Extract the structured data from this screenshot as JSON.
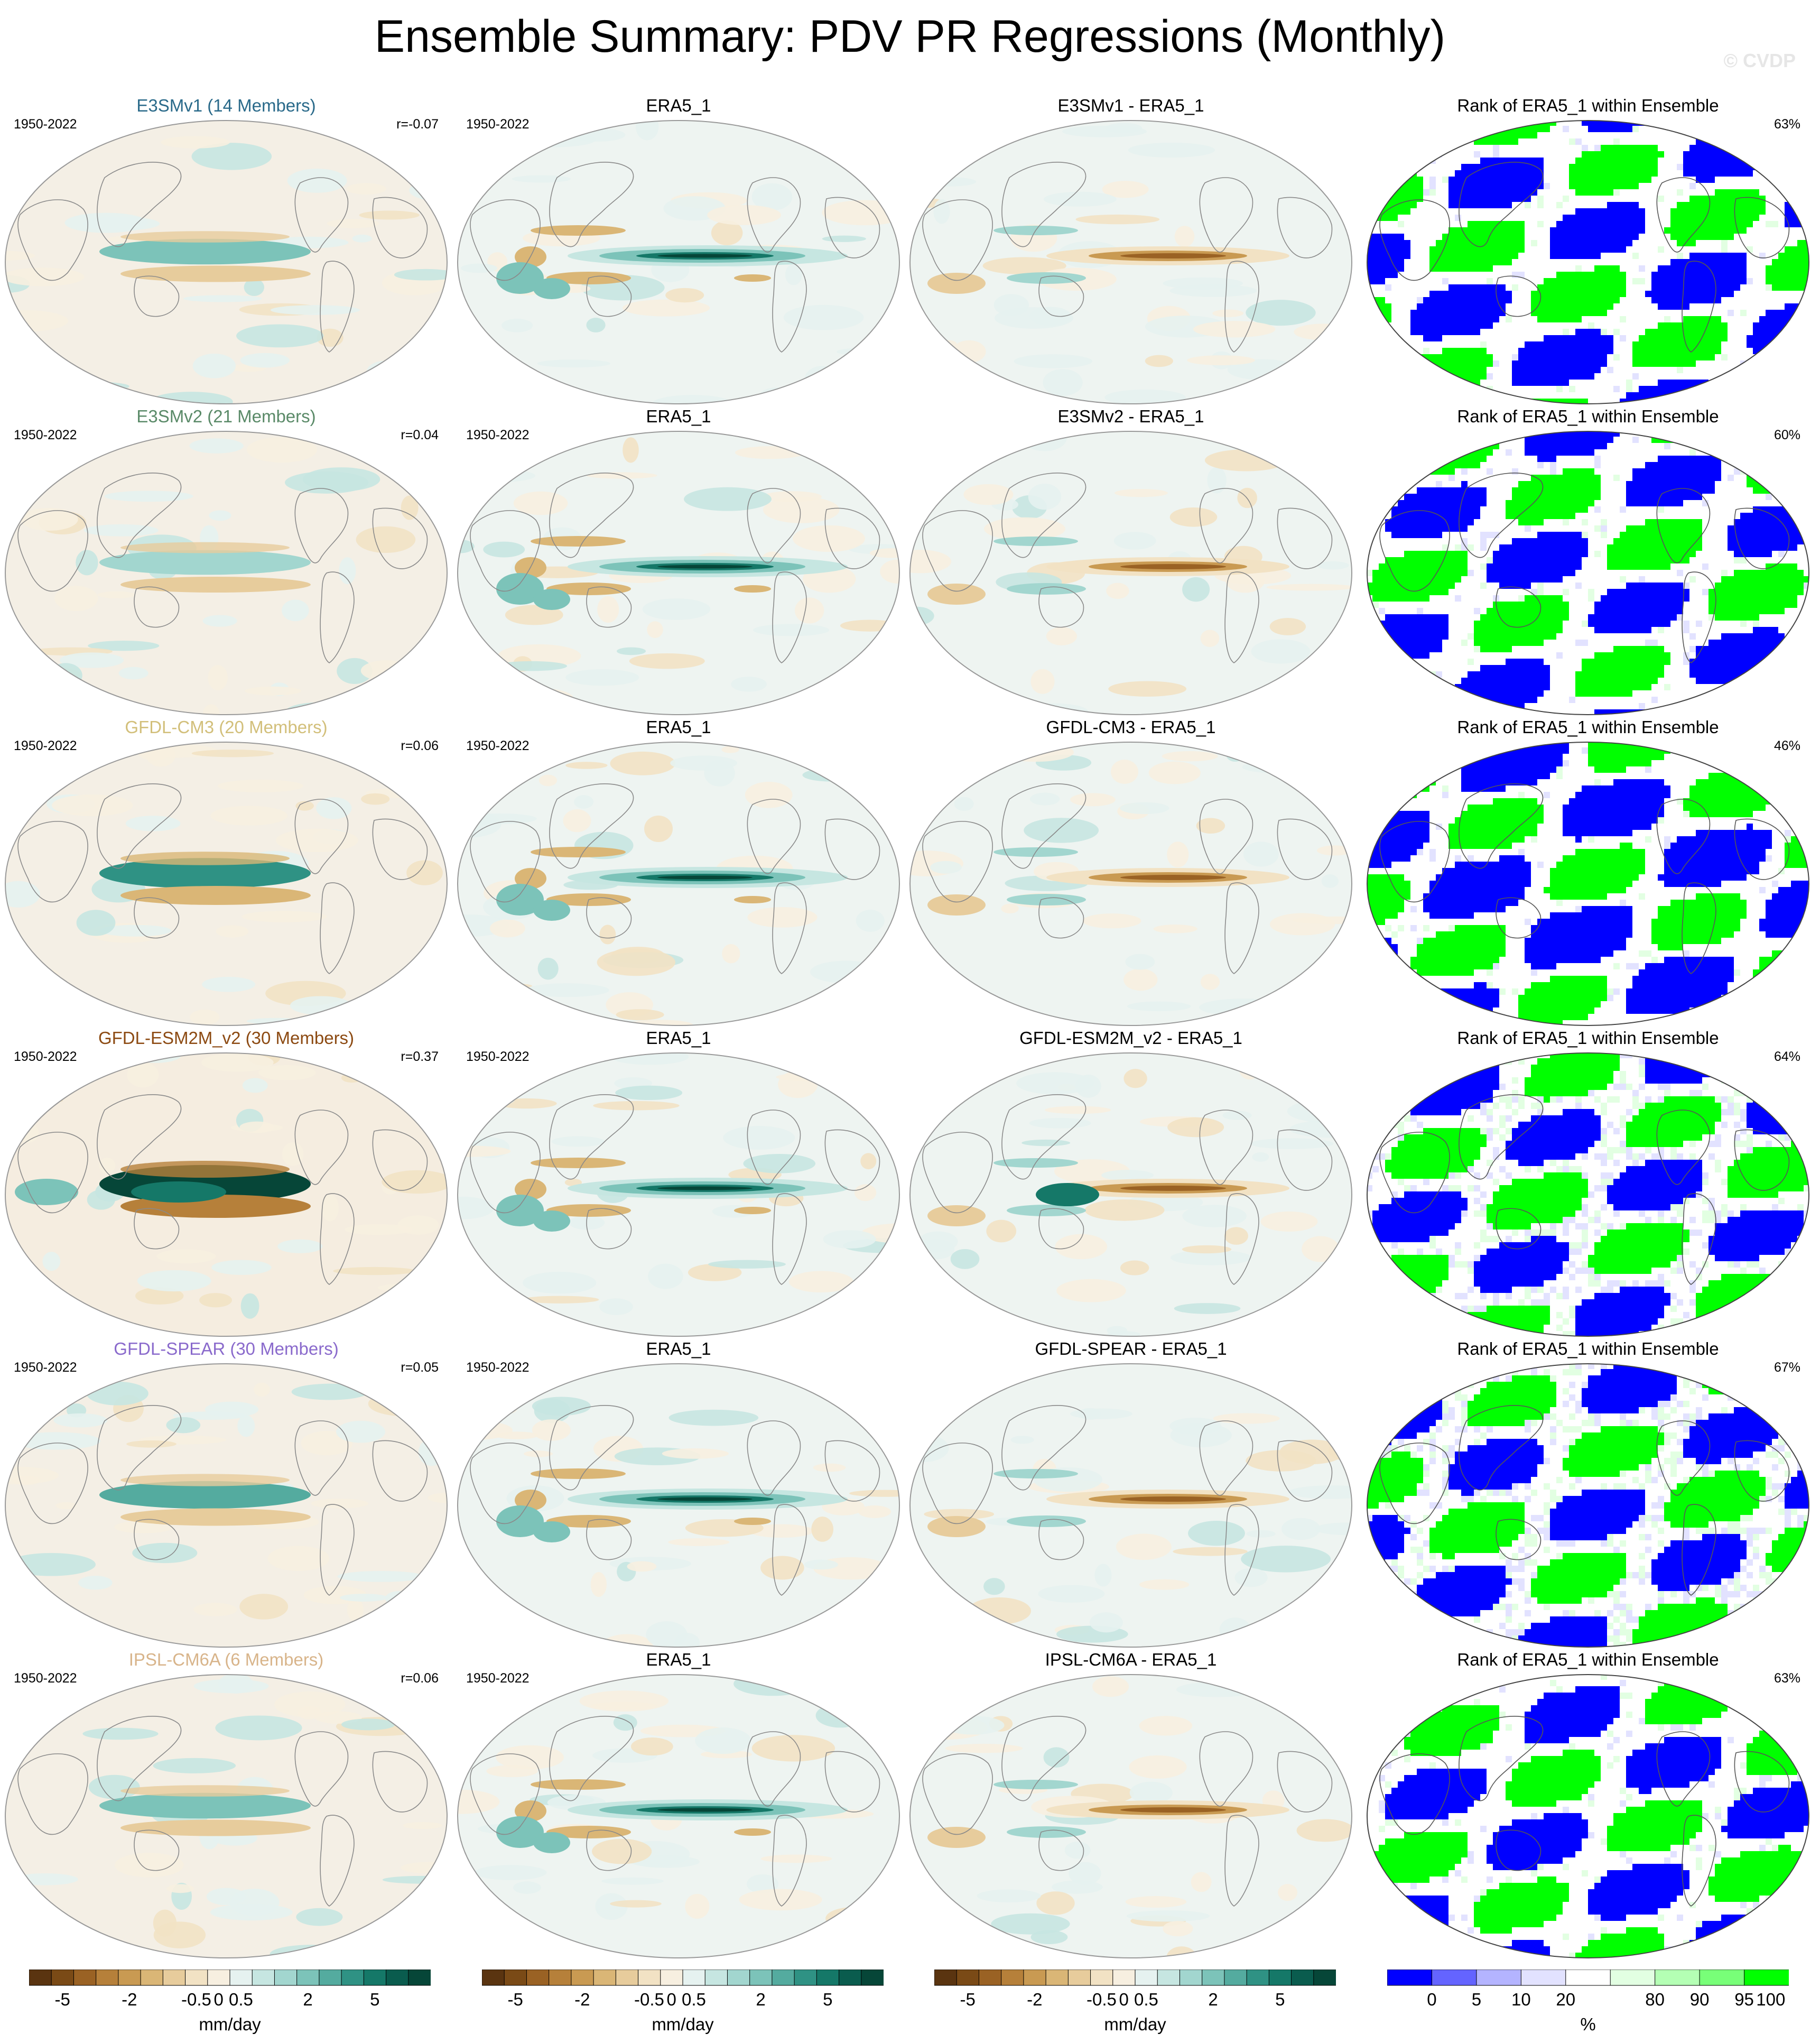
{
  "header": {
    "title": "Ensemble Summary: PDV PR Regressions (Monthly)",
    "credit": "© CVDP"
  },
  "rows": [
    {
      "model_title": "E3SMv1 (14 Members)",
      "model_color": "#2a6a8a",
      "years": "1950-2022",
      "r": "r=-0.07",
      "obs_title": "ERA5_1",
      "obs_years": "1950-2022",
      "diff_title": "E3SMv1 - ERA5_1",
      "rank_title": "Rank of ERA5_1 within Ensemble",
      "rank_pct": "63%"
    },
    {
      "model_title": "E3SMv2 (21 Members)",
      "model_color": "#5a8a68",
      "years": "1950-2022",
      "r": "r=0.04",
      "obs_title": "ERA5_1",
      "obs_years": "1950-2022",
      "diff_title": "E3SMv2 - ERA5_1",
      "rank_title": "Rank of ERA5_1 within Ensemble",
      "rank_pct": "60%"
    },
    {
      "model_title": "GFDL-CM3 (20 Members)",
      "model_color": "#d2bf7a",
      "years": "1950-2022",
      "r": "r=0.06",
      "obs_title": "ERA5_1",
      "obs_years": "1950-2022",
      "diff_title": "GFDL-CM3 - ERA5_1",
      "rank_title": "Rank of ERA5_1 within Ensemble",
      "rank_pct": "46%"
    },
    {
      "model_title": "GFDL-ESM2M_v2 (30 Members)",
      "model_color": "#8c4a12",
      "years": "1950-2022",
      "r": "r=0.37",
      "obs_title": "ERA5_1",
      "obs_years": "1950-2022",
      "diff_title": "GFDL-ESM2M_v2 - ERA5_1",
      "rank_title": "Rank of ERA5_1 within Ensemble",
      "rank_pct": "64%"
    },
    {
      "model_title": "GFDL-SPEAR (30 Members)",
      "model_color": "#8a6acc",
      "years": "1950-2022",
      "r": "r=0.05",
      "obs_title": "ERA5_1",
      "obs_years": "1950-2022",
      "diff_title": "GFDL-SPEAR - ERA5_1",
      "rank_title": "Rank of ERA5_1 within Ensemble",
      "rank_pct": "67%"
    },
    {
      "model_title": "IPSL-CM6A (6 Members)",
      "model_color": "#d8b48a",
      "years": "1950-2022",
      "r": "r=0.06",
      "obs_title": "ERA5_1",
      "obs_years": "1950-2022",
      "diff_title": "IPSL-CM6A - ERA5_1",
      "rank_title": "Rank of ERA5_1 within Ensemble",
      "rank_pct": "63%"
    }
  ],
  "colorbars": {
    "pr_unit": "mm/day",
    "pr_ticks": [
      "-5",
      "-2",
      "-0.5",
      "0",
      "0.5",
      "2",
      "5"
    ],
    "pr_colors": [
      "#5a3410",
      "#7a4a16",
      "#9a6224",
      "#b6803a",
      "#c99a52",
      "#dab676",
      "#e7cc9c",
      "#f2e2c4",
      "#f7efe0",
      "#e6f2f0",
      "#c6e6e1",
      "#a2d6cf",
      "#7cc3b9",
      "#54ab9f",
      "#2f9284",
      "#157868",
      "#0a5c4e",
      "#064638"
    ],
    "rank_unit": "%",
    "rank_ticks": [
      "0",
      "5",
      "10",
      "20",
      "80",
      "90",
      "95",
      "100"
    ],
    "rank_colors": [
      "#0000ff",
      "#6464ff",
      "#b4b4ff",
      "#e2e2ff",
      "#ffffff",
      "#e2ffe2",
      "#b4ffb4",
      "#78ff78",
      "#00ff00"
    ]
  },
  "chart_data": [
    {
      "type": "heatmap",
      "title": "E3SMv1 (14 Members)",
      "subtitle_left": "1950-2022",
      "subtitle_right": "r=-0.07",
      "units": "mm/day",
      "range": [
        -5,
        5
      ]
    },
    {
      "type": "heatmap",
      "title": "ERA5_1",
      "units": "mm/day",
      "range": [
        -5,
        5
      ]
    },
    {
      "type": "heatmap",
      "title": "E3SMv1 - ERA5_1",
      "units": "mm/day",
      "range": [
        -5,
        5
      ]
    },
    {
      "type": "heatmap",
      "title": "Rank of ERA5_1 within Ensemble",
      "subtitle_right": "63%",
      "units": "%",
      "range": [
        0,
        100
      ]
    },
    {
      "type": "heatmap",
      "title": "E3SMv2 (21 Members)",
      "subtitle_right": "r=0.04",
      "units": "mm/day"
    },
    {
      "type": "heatmap",
      "title": "E3SMv2 - ERA5_1",
      "units": "mm/day"
    },
    {
      "type": "heatmap",
      "title": "Rank of ERA5_1 within Ensemble",
      "subtitle_right": "60%",
      "units": "%"
    },
    {
      "type": "heatmap",
      "title": "GFDL-CM3 (20 Members)",
      "subtitle_right": "r=0.06",
      "units": "mm/day"
    },
    {
      "type": "heatmap",
      "title": "GFDL-CM3 - ERA5_1",
      "units": "mm/day"
    },
    {
      "type": "heatmap",
      "title": "Rank of ERA5_1 within Ensemble",
      "subtitle_right": "46%",
      "units": "%"
    },
    {
      "type": "heatmap",
      "title": "GFDL-ESM2M_v2 (30 Members)",
      "subtitle_right": "r=0.37",
      "units": "mm/day"
    },
    {
      "type": "heatmap",
      "title": "GFDL-ESM2M_v2 - ERA5_1",
      "units": "mm/day"
    },
    {
      "type": "heatmap",
      "title": "Rank of ERA5_1 within Ensemble",
      "subtitle_right": "64%",
      "units": "%"
    },
    {
      "type": "heatmap",
      "title": "GFDL-SPEAR (30 Members)",
      "subtitle_right": "r=0.05",
      "units": "mm/day"
    },
    {
      "type": "heatmap",
      "title": "GFDL-SPEAR - ERA5_1",
      "units": "mm/day"
    },
    {
      "type": "heatmap",
      "title": "Rank of ERA5_1 within Ensemble",
      "subtitle_right": "67%",
      "units": "%"
    },
    {
      "type": "heatmap",
      "title": "IPSL-CM6A (6 Members)",
      "subtitle_right": "r=0.06",
      "units": "mm/day"
    },
    {
      "type": "heatmap",
      "title": "IPSL-CM6A - ERA5_1",
      "units": "mm/day"
    },
    {
      "type": "heatmap",
      "title": "Rank of ERA5_1 within Ensemble",
      "subtitle_right": "63%",
      "units": "%"
    }
  ]
}
